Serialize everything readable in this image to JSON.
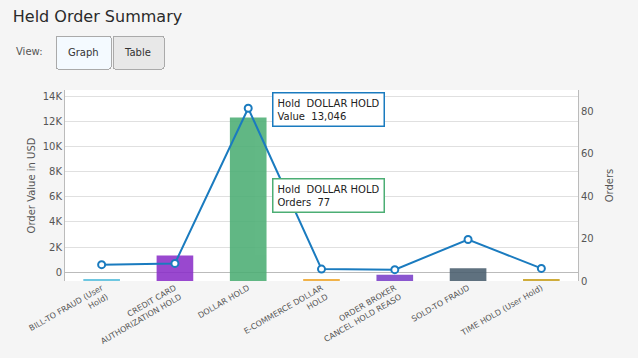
{
  "chart_data": {
    "type": "combo",
    "title": "Held Order Summary",
    "view_label": "View:",
    "buttons": [
      "Graph",
      "Table"
    ],
    "categories": [
      "BILL-TO FRAUD (User\nHold)",
      "CREDIT CARD\nAUTHORIZATION HOLD",
      "DOLLAR HOLD",
      "E-COMMERCE DOLLAR\nHOLD",
      "ORDER BROKER\nCANCEL HOLD REASO",
      "SOLD-TO FRAUD",
      "TIME HOLD (User Hold)"
    ],
    "series": [
      {
        "type": "bar",
        "axis": "y2",
        "colors": [
          "#5bc0de",
          "#8b2fc9",
          "#4cae74",
          "#f0a830",
          "#7b3fc9",
          "#4a5e6e",
          "#c8a020"
        ],
        "values": [
          1,
          12,
          77,
          1,
          3,
          6,
          1
        ]
      },
      {
        "type": "line",
        "axis": "y",
        "color": "#1a7bbf",
        "marker": "circle",
        "values": [
          600,
          700,
          13046,
          250,
          200,
          2600,
          300
        ]
      }
    ],
    "ylabel": "Order Value in USD",
    "y2label": "Orders",
    "ylim": [
      -700,
      14500
    ],
    "yticks": [
      0,
      {
        "value": 2000,
        "label": "2K"
      },
      {
        "value": 4000,
        "label": "4K"
      },
      {
        "value": 6000,
        "label": "6K"
      },
      {
        "value": 8000,
        "label": "8K"
      },
      {
        "value": 10000,
        "label": "10K"
      },
      {
        "value": 12000,
        "label": "12K"
      },
      {
        "value": 14000,
        "label": "14K"
      }
    ],
    "y2lim": [
      0,
      90
    ],
    "y2ticks": [
      0,
      20,
      40,
      60,
      80
    ],
    "grid": true,
    "annotations": [
      {
        "category": "DOLLAR HOLD",
        "lines": [
          "Hold  DOLLAR HOLD",
          "Value  13,046"
        ],
        "color": "#1a7bbf"
      },
      {
        "category": "DOLLAR HOLD",
        "lines": [
          "Hold  DOLLAR HOLD",
          "Orders  77"
        ],
        "color": "#4cae74"
      }
    ]
  }
}
